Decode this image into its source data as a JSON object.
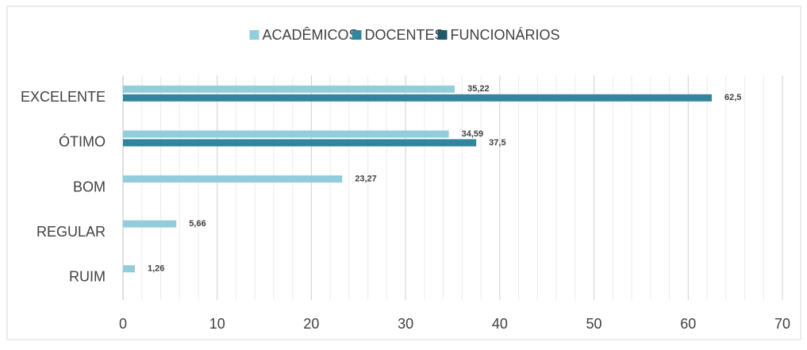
{
  "chart_data": {
    "type": "hbar",
    "categories": [
      "EXCELENTE",
      "ÓTIMO",
      "BOM",
      "REGULAR",
      "RUIM"
    ],
    "series": [
      {
        "name": "ACADÊMICOS",
        "color": "#92cddc",
        "values": [
          35.22,
          34.59,
          23.27,
          5.66,
          1.26
        ],
        "value_labels": [
          "35,22",
          "34,59",
          "23,27",
          "5,66",
          "1,26"
        ]
      },
      {
        "name": "DOCENTES",
        "color": "#31859c",
        "values": [
          62.5,
          37.5,
          null,
          null,
          null
        ],
        "value_labels": [
          "62,5",
          "37,5",
          null,
          null,
          null
        ]
      },
      {
        "name": "FUNCIONÁRIOS",
        "color": "#215968",
        "values": [
          null,
          null,
          null,
          null,
          null
        ]
      }
    ],
    "xlim": [
      0,
      70
    ],
    "xticks": [
      0,
      10,
      20,
      30,
      40,
      50,
      60,
      70
    ],
    "grid": true,
    "legend": "top"
  }
}
